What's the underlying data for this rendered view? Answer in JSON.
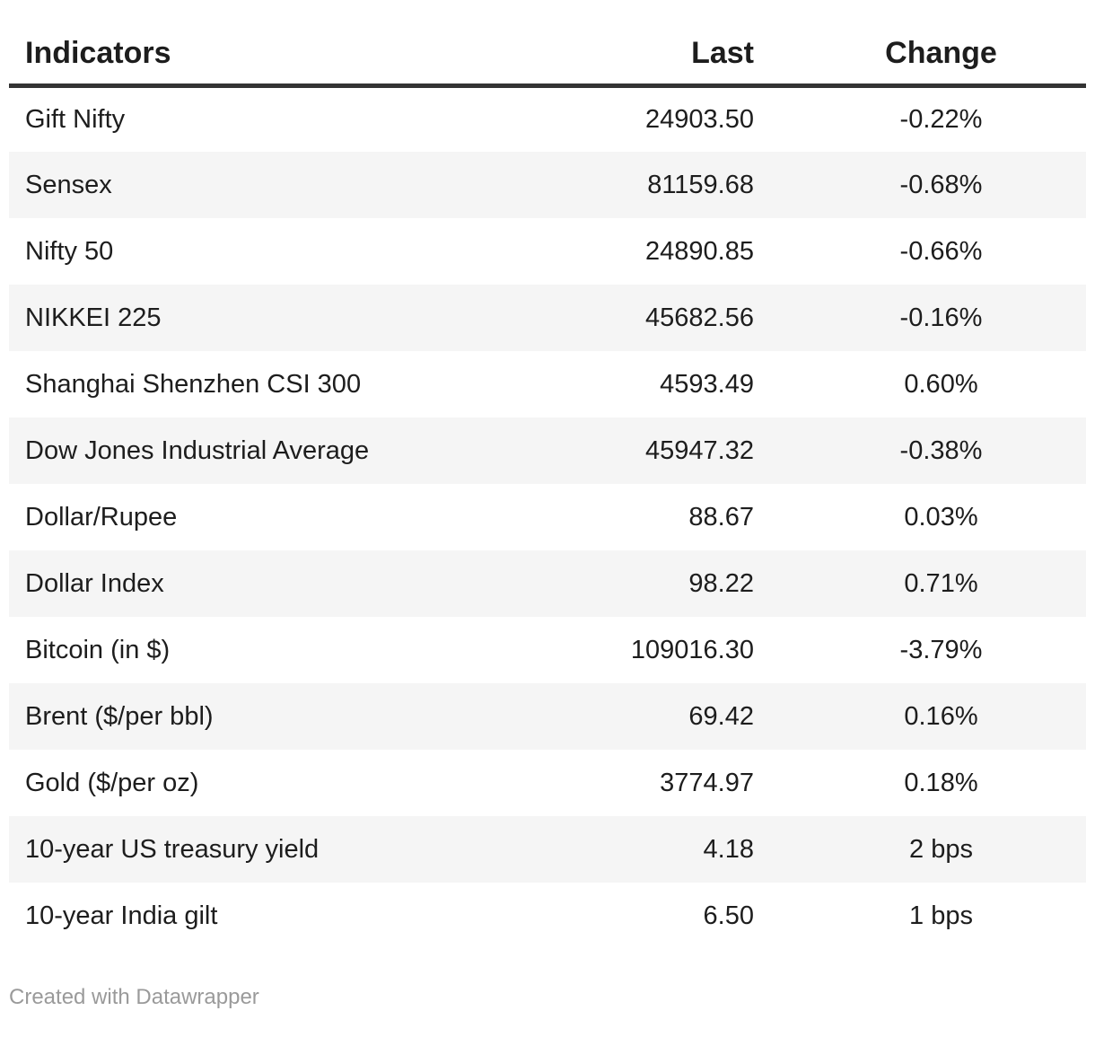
{
  "chart_data": {
    "type": "table",
    "title": "",
    "columns": [
      {
        "label": "Indicators",
        "align": "left"
      },
      {
        "label": "Last",
        "align": "right"
      },
      {
        "label": "Change",
        "align": "center"
      }
    ],
    "rows": [
      {
        "indicator": "Gift Nifty",
        "last": "24903.50",
        "change": "-0.22%"
      },
      {
        "indicator": "Sensex",
        "last": "81159.68",
        "change": "-0.68%"
      },
      {
        "indicator": "Nifty 50",
        "last": "24890.85",
        "change": "-0.66%"
      },
      {
        "indicator": "NIKKEI 225",
        "last": "45682.56",
        "change": "-0.16%"
      },
      {
        "indicator": "Shanghai Shenzhen CSI 300",
        "last": "4593.49",
        "change": "0.60%"
      },
      {
        "indicator": "Dow Jones Industrial Average",
        "last": "45947.32",
        "change": "-0.38%"
      },
      {
        "indicator": "Dollar/Rupee",
        "last": "88.67",
        "change": "0.03%"
      },
      {
        "indicator": "Dollar Index",
        "last": "98.22",
        "change": "0.71%"
      },
      {
        "indicator": "Bitcoin (in $)",
        "last": "109016.30",
        "change": "-3.79%"
      },
      {
        "indicator": "Brent ($/per bbl)",
        "last": "69.42",
        "change": "0.16%"
      },
      {
        "indicator": "Gold ($/per oz)",
        "last": "3774.97",
        "change": "0.18%"
      },
      {
        "indicator": "10-year US treasury yield",
        "last": "4.18",
        "change": "2 bps"
      },
      {
        "indicator": "10-year India gilt",
        "last": "6.50",
        "change": "1 bps"
      }
    ]
  },
  "footer": {
    "attribution": "Created with Datawrapper"
  },
  "colors": {
    "text": "#1d1d1d",
    "header_rule": "#333333",
    "row_stripe": "#f5f5f5",
    "attribution_text": "#9a9a9a"
  }
}
